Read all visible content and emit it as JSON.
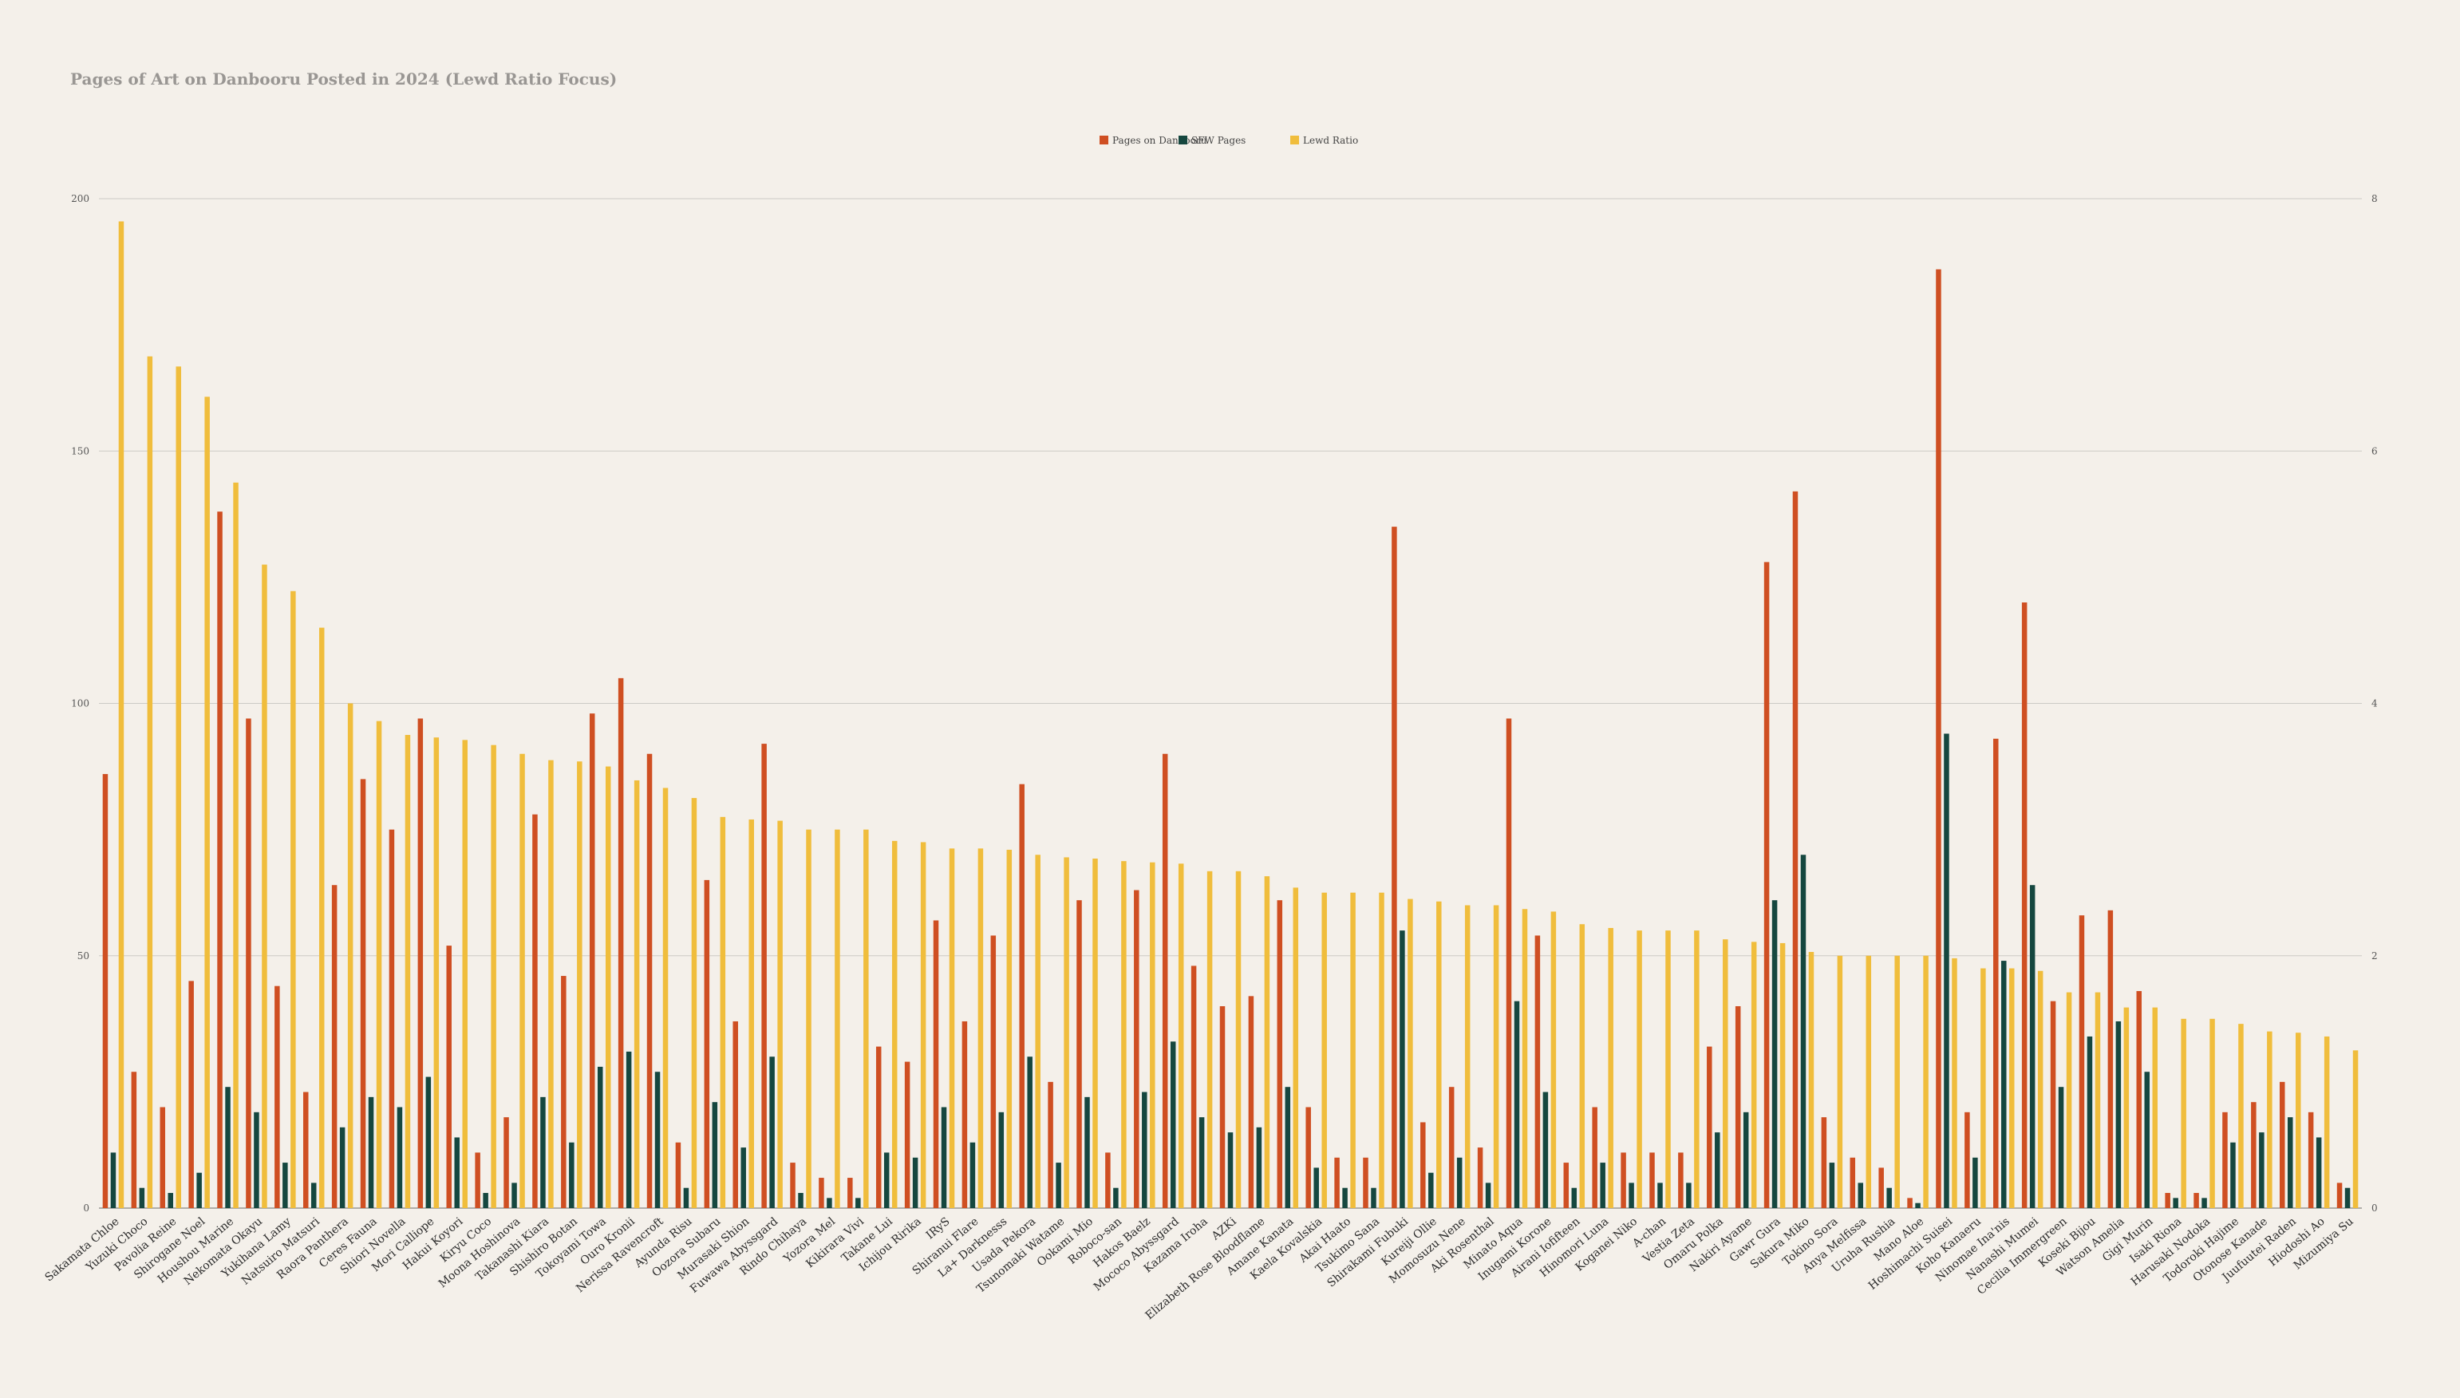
{
  "chart_data": {
    "type": "bar",
    "title": "Pages of Art on Danbooru Posted in 2024 (Lewd Ratio Focus)",
    "xlabel": "",
    "ylabel": "",
    "y2label": "",
    "ylim": [
      0,
      200
    ],
    "y2lim": [
      0,
      8
    ],
    "yticks": [
      0,
      50,
      100,
      150,
      200
    ],
    "y2ticks": [
      0,
      2,
      4,
      6,
      8
    ],
    "grid": true,
    "legend_position": "top-center",
    "colors": {
      "pages": "#cf4f22",
      "sfw": "#15473f",
      "ratio": "#f0bd3c",
      "background": "#f4f0ea",
      "title": "#999693"
    },
    "categories": [
      "Sakamata Chloe",
      "Yuzuki Choco",
      "Pavolia Reine",
      "Shirogane Noel",
      "Houshou Marine",
      "Nekomata Okayu",
      "Yukihana Lamy",
      "Natsuiro Matsuri",
      "Raora Panthera",
      "Ceres Fauna",
      "Shiori Novella",
      "Mori Calliope",
      "Hakui Koyori",
      "Kiryu Coco",
      "Moona Hoshinova",
      "Takanashi Kiara",
      "Shishiro Botan",
      "Tokoyami Towa",
      "Ouro Kronii",
      "Nerissa Ravencroft",
      "Ayunda Risu",
      "Oozora Subaru",
      "Murasaki Shion",
      "Fuwawa Abyssgard",
      "Rindo Chihaya",
      "Yozora Mel",
      "Kikirara Vivi",
      "Takane Lui",
      "Ichijou Ririka",
      "IRyS",
      "Shiranui Flare",
      "La+ Darknesss",
      "Usada Pekora",
      "Tsunomaki Watame",
      "Ookami Mio",
      "Roboco-san",
      "Hakos Baelz",
      "Mococo Abyssgard",
      "Kazama Iroha",
      "AZKi",
      "Elizabeth Rose Bloodflame",
      "Amane Kanata",
      "Kaela Kovalskia",
      "Akai Haato",
      "Tsukimo Sana",
      "Shirakami Fubuki",
      "Kureiji Ollie",
      "Momosuzu Nene",
      "Aki Rosenthal",
      "Minato Aqua",
      "Inugami Korone",
      "Airani Iofifteen",
      "Hinomori Luna",
      "Koganei Niko",
      "A-chan",
      "Vestia Zeta",
      "Omaru Polka",
      "Nakiri Ayame",
      "Gawr Gura",
      "Sakura Miko",
      "Tokino Sora",
      "Anya Melfissa",
      "Uruha Rushia",
      "Mano Aloe",
      "Hoshimachi Suisei",
      "Koho Kanaeru",
      "Ninomae Ina'nis",
      "Nanashi Mumei",
      "Cecilia Immergreen",
      "Koseki Bijou",
      "Watson Amelia",
      "Gigi Murin",
      "Isaki Riona",
      "Harusaki Nodoka",
      "Todoroki Hajime",
      "Otonose Kanade",
      "Juufuutei Raden",
      "Hiodoshi Ao",
      "Mizumiya Su"
    ],
    "series": [
      {
        "name": "Pages on Danbooru",
        "axis": "left",
        "values": [
          86,
          27,
          20,
          45,
          138,
          97,
          44,
          23,
          64,
          85,
          75,
          97,
          52,
          11,
          18,
          78,
          46,
          98,
          105,
          90,
          13,
          65,
          37,
          92,
          9,
          6,
          6,
          32,
          29,
          57,
          37,
          54,
          84,
          25,
          61,
          11,
          63,
          90,
          48,
          40,
          42,
          61,
          20,
          10,
          10,
          135,
          17,
          24,
          12,
          97,
          54,
          9,
          20,
          11,
          11,
          11,
          32,
          40,
          128,
          142,
          18,
          10,
          8,
          2,
          186,
          19,
          93,
          120,
          41,
          58,
          59,
          43,
          3,
          3,
          19,
          21,
          25,
          19,
          5
        ]
      },
      {
        "name": "SFW Pages",
        "axis": "left",
        "values": [
          11,
          4,
          3,
          7,
          24,
          19,
          9,
          5,
          16,
          22,
          20,
          26,
          14,
          3,
          5,
          22,
          13,
          28,
          31,
          27,
          4,
          21,
          12,
          30,
          3,
          2,
          2,
          11,
          10,
          20,
          13,
          19,
          30,
          9,
          22,
          4,
          23,
          33,
          18,
          15,
          16,
          24,
          8,
          4,
          4,
          55,
          7,
          10,
          5,
          41,
          23,
          4,
          9,
          5,
          5,
          5,
          15,
          19,
          61,
          70,
          9,
          5,
          4,
          1,
          94,
          10,
          49,
          64,
          24,
          34,
          37,
          27,
          2,
          2,
          13,
          15,
          18,
          14,
          4
        ]
      },
      {
        "name": "Lewd Ratio",
        "axis": "right",
        "values": [
          7.82,
          6.75,
          6.67,
          6.43,
          5.75,
          5.1,
          4.89,
          4.6,
          4.0,
          3.86,
          3.75,
          3.73,
          3.71,
          3.67,
          3.6,
          3.55,
          3.54,
          3.5,
          3.39,
          3.33,
          3.25,
          3.1,
          3.08,
          3.07,
          3.0,
          3.0,
          3.0,
          2.91,
          2.9,
          2.85,
          2.85,
          2.84,
          2.8,
          2.78,
          2.77,
          2.75,
          2.74,
          2.73,
          2.67,
          2.67,
          2.63,
          2.54,
          2.5,
          2.5,
          2.5,
          2.45,
          2.43,
          2.4,
          2.4,
          2.37,
          2.35,
          2.25,
          2.22,
          2.2,
          2.2,
          2.2,
          2.13,
          2.11,
          2.1,
          2.03,
          2.0,
          2.0,
          2.0,
          2.0,
          1.98,
          1.9,
          1.9,
          1.88,
          1.71,
          1.71,
          1.59,
          1.59,
          1.5,
          1.5,
          1.46,
          1.4,
          1.39,
          1.36,
          1.25
        ]
      }
    ]
  }
}
